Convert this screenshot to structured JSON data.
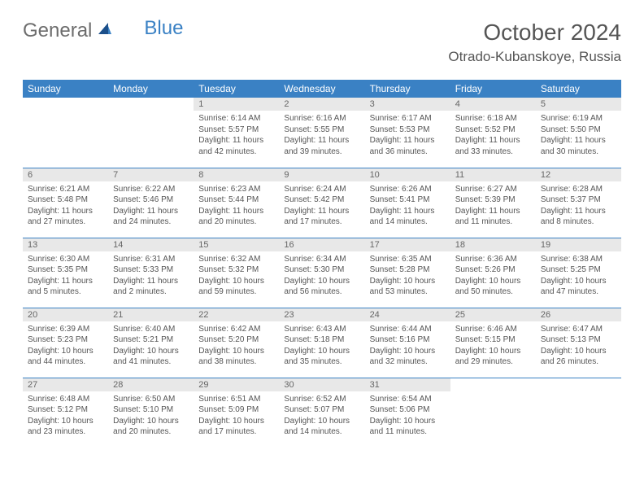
{
  "brand": {
    "part1": "General",
    "part2": "Blue"
  },
  "title": "October 2024",
  "location": "Otrado-Kubanskoye, Russia",
  "colors": {
    "header_bg": "#3a81c4",
    "header_text": "#ffffff",
    "daynum_bg": "#e8e8e8",
    "body_text": "#555555",
    "rule": "#3a81c4"
  },
  "day_headers": [
    "Sunday",
    "Monday",
    "Tuesday",
    "Wednesday",
    "Thursday",
    "Friday",
    "Saturday"
  ],
  "weeks": [
    [
      null,
      null,
      {
        "n": "1",
        "sr": "6:14 AM",
        "ss": "5:57 PM",
        "dl": "11 hours and 42 minutes."
      },
      {
        "n": "2",
        "sr": "6:16 AM",
        "ss": "5:55 PM",
        "dl": "11 hours and 39 minutes."
      },
      {
        "n": "3",
        "sr": "6:17 AM",
        "ss": "5:53 PM",
        "dl": "11 hours and 36 minutes."
      },
      {
        "n": "4",
        "sr": "6:18 AM",
        "ss": "5:52 PM",
        "dl": "11 hours and 33 minutes."
      },
      {
        "n": "5",
        "sr": "6:19 AM",
        "ss": "5:50 PM",
        "dl": "11 hours and 30 minutes."
      }
    ],
    [
      {
        "n": "6",
        "sr": "6:21 AM",
        "ss": "5:48 PM",
        "dl": "11 hours and 27 minutes."
      },
      {
        "n": "7",
        "sr": "6:22 AM",
        "ss": "5:46 PM",
        "dl": "11 hours and 24 minutes."
      },
      {
        "n": "8",
        "sr": "6:23 AM",
        "ss": "5:44 PM",
        "dl": "11 hours and 20 minutes."
      },
      {
        "n": "9",
        "sr": "6:24 AM",
        "ss": "5:42 PM",
        "dl": "11 hours and 17 minutes."
      },
      {
        "n": "10",
        "sr": "6:26 AM",
        "ss": "5:41 PM",
        "dl": "11 hours and 14 minutes."
      },
      {
        "n": "11",
        "sr": "6:27 AM",
        "ss": "5:39 PM",
        "dl": "11 hours and 11 minutes."
      },
      {
        "n": "12",
        "sr": "6:28 AM",
        "ss": "5:37 PM",
        "dl": "11 hours and 8 minutes."
      }
    ],
    [
      {
        "n": "13",
        "sr": "6:30 AM",
        "ss": "5:35 PM",
        "dl": "11 hours and 5 minutes."
      },
      {
        "n": "14",
        "sr": "6:31 AM",
        "ss": "5:33 PM",
        "dl": "11 hours and 2 minutes."
      },
      {
        "n": "15",
        "sr": "6:32 AM",
        "ss": "5:32 PM",
        "dl": "10 hours and 59 minutes."
      },
      {
        "n": "16",
        "sr": "6:34 AM",
        "ss": "5:30 PM",
        "dl": "10 hours and 56 minutes."
      },
      {
        "n": "17",
        "sr": "6:35 AM",
        "ss": "5:28 PM",
        "dl": "10 hours and 53 minutes."
      },
      {
        "n": "18",
        "sr": "6:36 AM",
        "ss": "5:26 PM",
        "dl": "10 hours and 50 minutes."
      },
      {
        "n": "19",
        "sr": "6:38 AM",
        "ss": "5:25 PM",
        "dl": "10 hours and 47 minutes."
      }
    ],
    [
      {
        "n": "20",
        "sr": "6:39 AM",
        "ss": "5:23 PM",
        "dl": "10 hours and 44 minutes."
      },
      {
        "n": "21",
        "sr": "6:40 AM",
        "ss": "5:21 PM",
        "dl": "10 hours and 41 minutes."
      },
      {
        "n": "22",
        "sr": "6:42 AM",
        "ss": "5:20 PM",
        "dl": "10 hours and 38 minutes."
      },
      {
        "n": "23",
        "sr": "6:43 AM",
        "ss": "5:18 PM",
        "dl": "10 hours and 35 minutes."
      },
      {
        "n": "24",
        "sr": "6:44 AM",
        "ss": "5:16 PM",
        "dl": "10 hours and 32 minutes."
      },
      {
        "n": "25",
        "sr": "6:46 AM",
        "ss": "5:15 PM",
        "dl": "10 hours and 29 minutes."
      },
      {
        "n": "26",
        "sr": "6:47 AM",
        "ss": "5:13 PM",
        "dl": "10 hours and 26 minutes."
      }
    ],
    [
      {
        "n": "27",
        "sr": "6:48 AM",
        "ss": "5:12 PM",
        "dl": "10 hours and 23 minutes."
      },
      {
        "n": "28",
        "sr": "6:50 AM",
        "ss": "5:10 PM",
        "dl": "10 hours and 20 minutes."
      },
      {
        "n": "29",
        "sr": "6:51 AM",
        "ss": "5:09 PM",
        "dl": "10 hours and 17 minutes."
      },
      {
        "n": "30",
        "sr": "6:52 AM",
        "ss": "5:07 PM",
        "dl": "10 hours and 14 minutes."
      },
      {
        "n": "31",
        "sr": "6:54 AM",
        "ss": "5:06 PM",
        "dl": "10 hours and 11 minutes."
      },
      null,
      null
    ]
  ]
}
